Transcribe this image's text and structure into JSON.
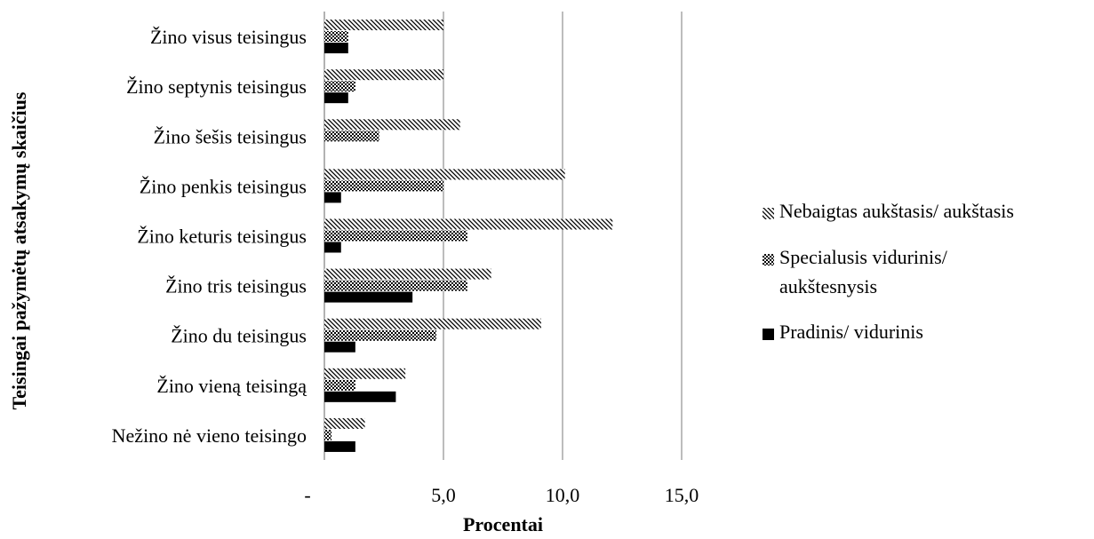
{
  "chart_data": {
    "type": "bar",
    "orientation": "horizontal",
    "categories": [
      "Žino visus teisingus",
      "Žino septynis teisingus",
      "Žino šešis teisingus",
      "Žino penkis teisingus",
      "Žino keturis teisingus",
      "Žino tris teisingus",
      "Žino du teisingus",
      "Žino vieną teisingą",
      "Nežino nė vieno teisingo"
    ],
    "series": [
      {
        "name": "Nebaigtas aukštasis/ aukštasis",
        "pattern": "diagonal-hatch",
        "values": [
          5.0,
          5.0,
          5.7,
          10.1,
          12.1,
          7.0,
          9.1,
          3.4,
          1.7
        ]
      },
      {
        "name": "Specialusis vidurinis/ aukštesnysis",
        "pattern": "checker",
        "values": [
          1.0,
          1.3,
          2.3,
          5.0,
          6.0,
          6.0,
          4.7,
          1.3,
          0.3
        ]
      },
      {
        "name": "Pradinis/ vidurinis",
        "pattern": "solid",
        "values": [
          1.0,
          1.0,
          0.0,
          0.7,
          0.7,
          3.7,
          1.3,
          3.0,
          1.3
        ]
      }
    ],
    "xlabel": "Procentai",
    "ylabel": "Teisingai pažymėtų atsakymų skaičius",
    "xlim": [
      0,
      15
    ],
    "xticks": [
      {
        "value": 0,
        "label": "-"
      },
      {
        "value": 5,
        "label": "5,0"
      },
      {
        "value": 10,
        "label": "10,0"
      },
      {
        "value": 15,
        "label": "15,0"
      }
    ],
    "grid": true,
    "legend_position": "right",
    "legend_order": [
      0,
      1,
      2
    ],
    "colors": {
      "bar": "#000000",
      "grid": "#999999",
      "axis": "#888888"
    }
  }
}
